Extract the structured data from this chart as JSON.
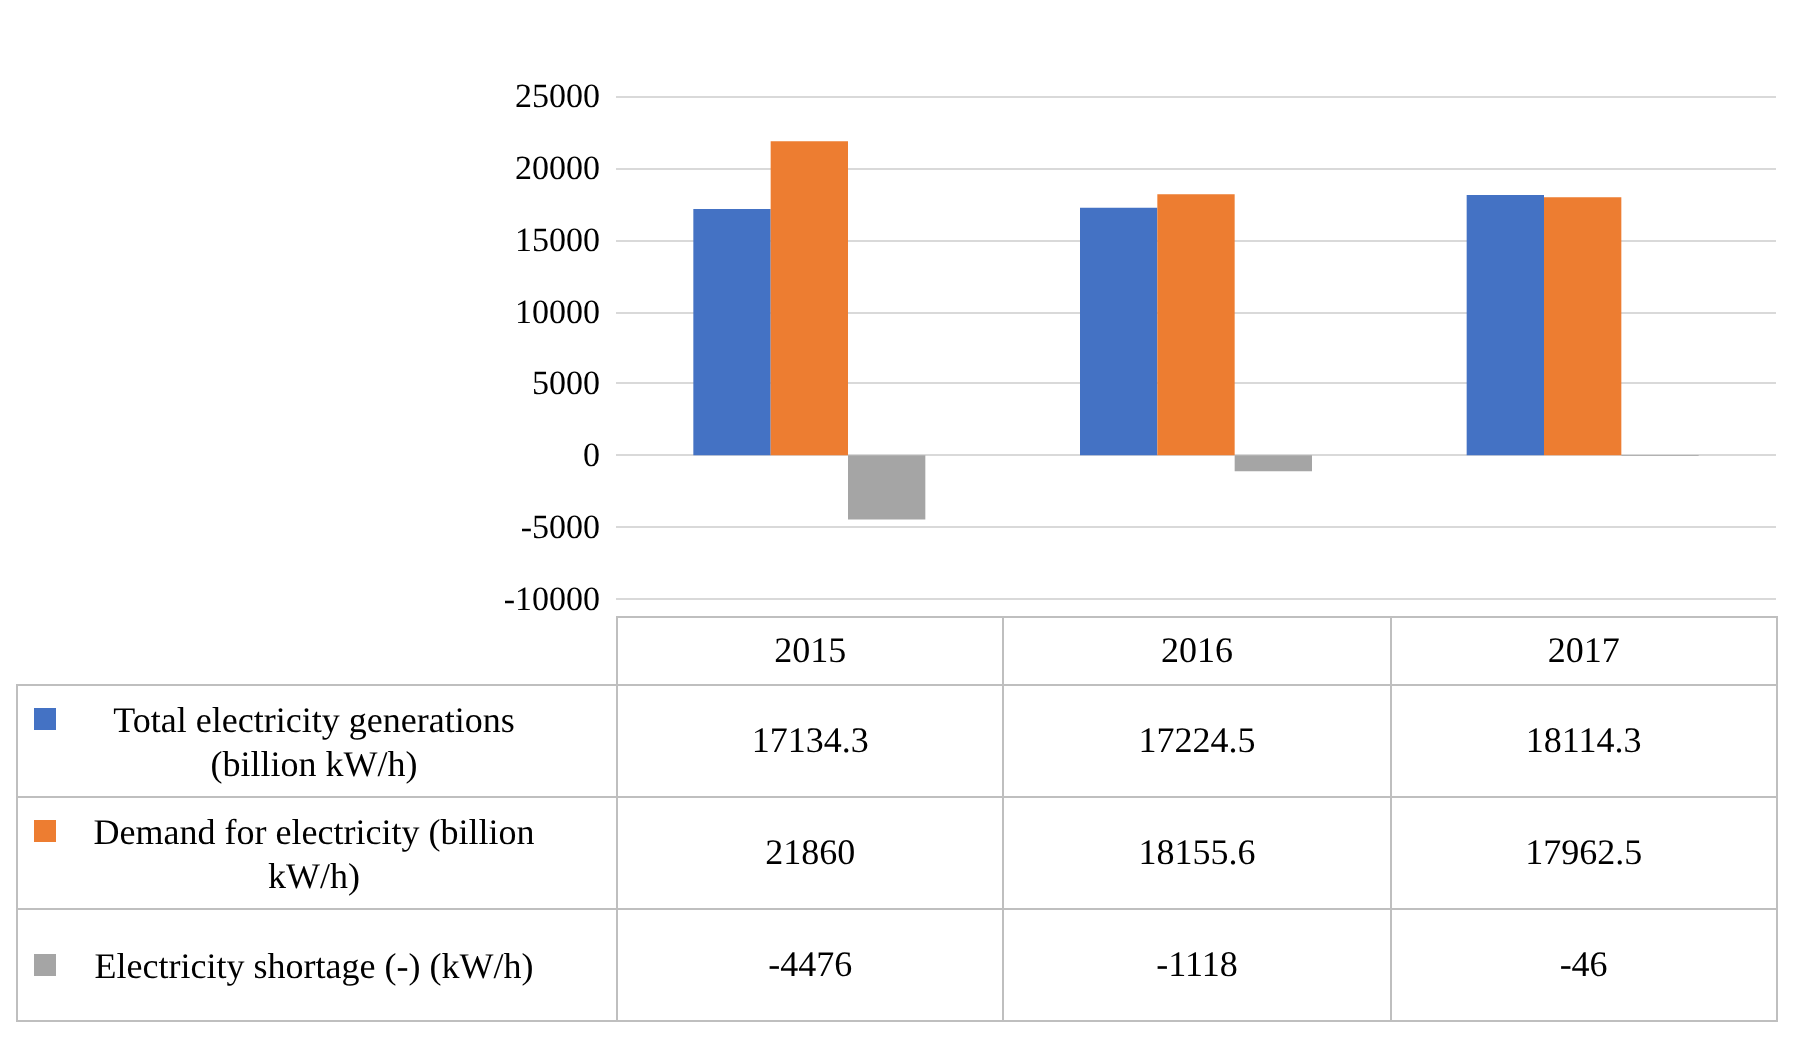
{
  "chart_data": {
    "type": "bar",
    "categories": [
      "2015",
      "2016",
      "2017"
    ],
    "series": [
      {
        "name": "Total electricity generations (billion kW/h)",
        "color": "#4472c4",
        "values": [
          17134.3,
          17224.5,
          18114.3
        ]
      },
      {
        "name": "Demand for electricity (billion kW/h)",
        "color": "#ed7d31",
        "values": [
          21860,
          18155.6,
          17962.5
        ]
      },
      {
        "name": "Electricity shortage (-) (kW/h)",
        "color": "#a5a5a5",
        "values": [
          -4476,
          -1118,
          -46
        ]
      }
    ],
    "ylim": [
      -10000,
      25000
    ],
    "yticks": [
      -10000,
      -5000,
      0,
      5000,
      10000,
      15000,
      20000,
      25000
    ],
    "grid": "y",
    "legend": "bottom",
    "data_labels": true
  }
}
